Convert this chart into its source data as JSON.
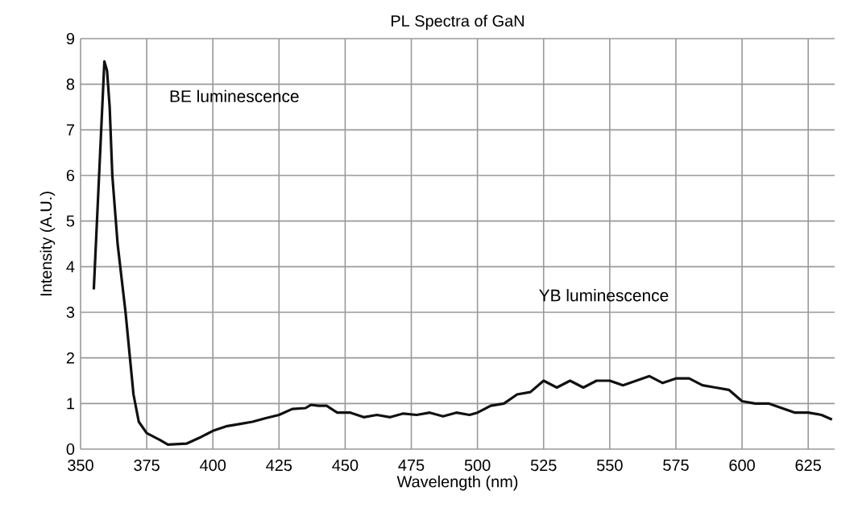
{
  "chart_data": {
    "type": "line",
    "title": "PL Spectra of GaN",
    "xlabel": "Wavelength (nm)",
    "ylabel": "Intensity (A.U.)",
    "annotations": [
      "BE luminescence",
      "YB luminescence"
    ],
    "xlim": [
      350,
      635
    ],
    "ylim": [
      0,
      9
    ],
    "xticks": [
      350,
      375,
      400,
      425,
      450,
      475,
      500,
      525,
      550,
      575,
      600,
      625
    ],
    "yticks": [
      0,
      1,
      2,
      3,
      4,
      5,
      6,
      7,
      8,
      9
    ],
    "grid": true,
    "marker": "none",
    "line_style": "solid",
    "series": [
      {
        "color": "#111111",
        "x": [
          355,
          357,
          359,
          360,
          361,
          362,
          364,
          367,
          370,
          372,
          375,
          380,
          383,
          390,
          395,
          400,
          405,
          410,
          415,
          420,
          425,
          430,
          435,
          437,
          440,
          443,
          447,
          452,
          457,
          462,
          467,
          472,
          477,
          482,
          487,
          492,
          497,
          500,
          505,
          510,
          515,
          520,
          525,
          530,
          535,
          540,
          545,
          550,
          555,
          560,
          565,
          570,
          575,
          580,
          585,
          590,
          595,
          600,
          605,
          610,
          615,
          620,
          625,
          630,
          634
        ],
        "values": [
          3.5,
          6.0,
          8.5,
          8.3,
          7.5,
          6.0,
          4.5,
          3.0,
          1.2,
          0.6,
          0.35,
          0.2,
          0.1,
          0.12,
          0.25,
          0.4,
          0.5,
          0.55,
          0.6,
          0.68,
          0.75,
          0.88,
          0.9,
          0.97,
          0.95,
          0.95,
          0.8,
          0.8,
          0.7,
          0.75,
          0.7,
          0.78,
          0.75,
          0.8,
          0.72,
          0.8,
          0.75,
          0.8,
          0.95,
          1.0,
          1.2,
          1.25,
          1.5,
          1.35,
          1.5,
          1.35,
          1.5,
          1.5,
          1.4,
          1.5,
          1.6,
          1.45,
          1.55,
          1.55,
          1.4,
          1.35,
          1.3,
          1.05,
          1.0,
          1.0,
          0.9,
          0.8,
          0.8,
          0.75,
          0.65
        ]
      }
    ]
  }
}
